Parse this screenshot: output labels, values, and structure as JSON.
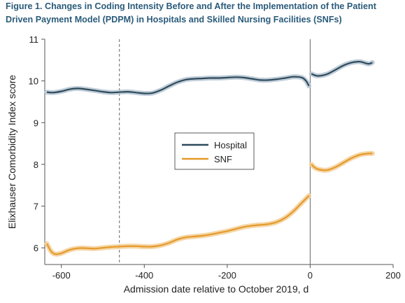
{
  "figure": {
    "label": "Figure 1.",
    "title": "Changes in Coding Intensity Before and After the Implementation of the Patient Driven Payment Model (PDPM) in Hospitals and Skilled Nursing Facilities (SNFs)"
  },
  "colors": {
    "hospital": "#2e4a5c",
    "hospital_band": "#b6c6d2",
    "snf": "#e59a2b",
    "snf_band": "#f3cf97",
    "axis": "#555555",
    "reference_line": "#666666"
  },
  "chart_data": {
    "type": "line",
    "xlabel": "Admission date relative to October 2019, d",
    "ylabel": "Elixhauser Comorbidity Index score",
    "xlim": [
      -640,
      200
    ],
    "ylim": [
      5.6,
      11
    ],
    "xticks": [
      -600,
      -400,
      -200,
      0,
      200
    ],
    "xtick_labels": [
      "-600",
      "-400",
      "-200",
      "0",
      "200"
    ],
    "yticks": [
      6,
      7,
      8,
      9,
      10,
      11
    ],
    "ytick_labels": [
      "6",
      "7",
      "8",
      "9",
      "10",
      "11"
    ],
    "grid": false,
    "legend": "center",
    "reference_lines": {
      "dashed_x": -460,
      "solid_x": 0
    },
    "series": [
      {
        "name": "Hospital",
        "color_key": "hospital",
        "segments": [
          {
            "x": [
              -635,
              -620,
              -600,
              -580,
              -560,
              -540,
              -520,
              -500,
              -480,
              -460,
              -440,
              -420,
              -400,
              -380,
              -360,
              -340,
              -320,
              -300,
              -280,
              -260,
              -240,
              -220,
              -200,
              -180,
              -160,
              -140,
              -120,
              -100,
              -80,
              -60,
              -40,
              -20,
              -10,
              -3
            ],
            "y": [
              9.73,
              9.72,
              9.75,
              9.8,
              9.82,
              9.8,
              9.77,
              9.74,
              9.72,
              9.73,
              9.74,
              9.72,
              9.7,
              9.71,
              9.78,
              9.88,
              9.97,
              10.03,
              10.05,
              10.06,
              10.07,
              10.07,
              10.08,
              10.09,
              10.08,
              10.05,
              10.02,
              10.02,
              10.04,
              10.07,
              10.1,
              10.08,
              10.0,
              9.88
            ]
          },
          {
            "x": [
              3,
              10,
              20,
              40,
              60,
              80,
              100,
              120,
              140,
              150
            ],
            "y": [
              10.17,
              10.14,
              10.12,
              10.16,
              10.26,
              10.37,
              10.44,
              10.46,
              10.41,
              10.44
            ]
          }
        ]
      },
      {
        "name": "SNF",
        "color_key": "snf",
        "segments": [
          {
            "x": [
              -635,
              -625,
              -615,
              -600,
              -580,
              -560,
              -540,
              -520,
              -500,
              -480,
              -460,
              -440,
              -420,
              -400,
              -380,
              -360,
              -340,
              -320,
              -300,
              -280,
              -260,
              -240,
              -220,
              -200,
              -180,
              -160,
              -140,
              -120,
              -100,
              -80,
              -60,
              -40,
              -20,
              -10,
              -3
            ],
            "y": [
              6.1,
              5.92,
              5.85,
              5.87,
              5.95,
              5.99,
              5.99,
              5.98,
              6.0,
              6.02,
              6.03,
              6.04,
              6.04,
              6.03,
              6.03,
              6.06,
              6.12,
              6.2,
              6.25,
              6.27,
              6.29,
              6.32,
              6.36,
              6.4,
              6.45,
              6.5,
              6.53,
              6.55,
              6.57,
              6.62,
              6.72,
              6.88,
              7.08,
              7.18,
              7.25
            ]
          },
          {
            "x": [
              3,
              10,
              20,
              40,
              60,
              80,
              100,
              120,
              140,
              150
            ],
            "y": [
              8.0,
              7.93,
              7.88,
              7.86,
              7.93,
              8.04,
              8.15,
              8.23,
              8.26,
              8.26
            ]
          }
        ]
      }
    ]
  }
}
